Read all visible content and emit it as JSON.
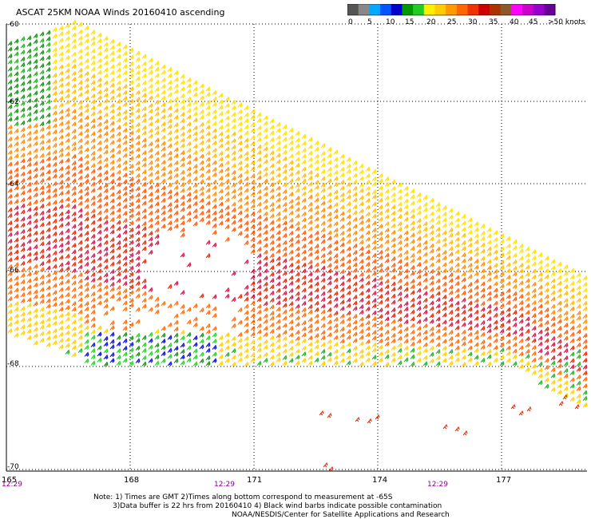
{
  "title": "ASCAT 25KM NOAA Winds 20160410 ascending",
  "colorbar": {
    "colors": [
      "#555555",
      "#888888",
      "#00aaff",
      "#0055ff",
      "#0000cc",
      "#009900",
      "#22cc22",
      "#ffee00",
      "#ffcc00",
      "#ff9900",
      "#ff6600",
      "#ee3300",
      "#cc0000",
      "#aa3300",
      "#8b5a2b",
      "#ff00ff",
      "#cc00cc",
      "#9900cc",
      "#660099"
    ],
    "ticks": [
      "0",
      "5",
      "10",
      "15",
      "20",
      "25",
      "30",
      "35",
      "40",
      "45",
      ">50 knots"
    ]
  },
  "latitudes": [
    "-60",
    "-62",
    "-64",
    "-66",
    "-68",
    "-70"
  ],
  "longitudes": [
    "165",
    "168",
    "171",
    "174",
    "177"
  ],
  "times": [
    "12:29",
    "12:29",
    "12:29"
  ],
  "notes": {
    "line1": "Note: 1) Times are GMT 2)Times along bottom correspond to measurement at -65S",
    "line2": "3)Data buffer is 22 hrs from 20160410 4) Black wind barbs indicate possible contamination",
    "line3": "NOAA/NESDIS/Center for Satellite Applications and Research"
  }
}
